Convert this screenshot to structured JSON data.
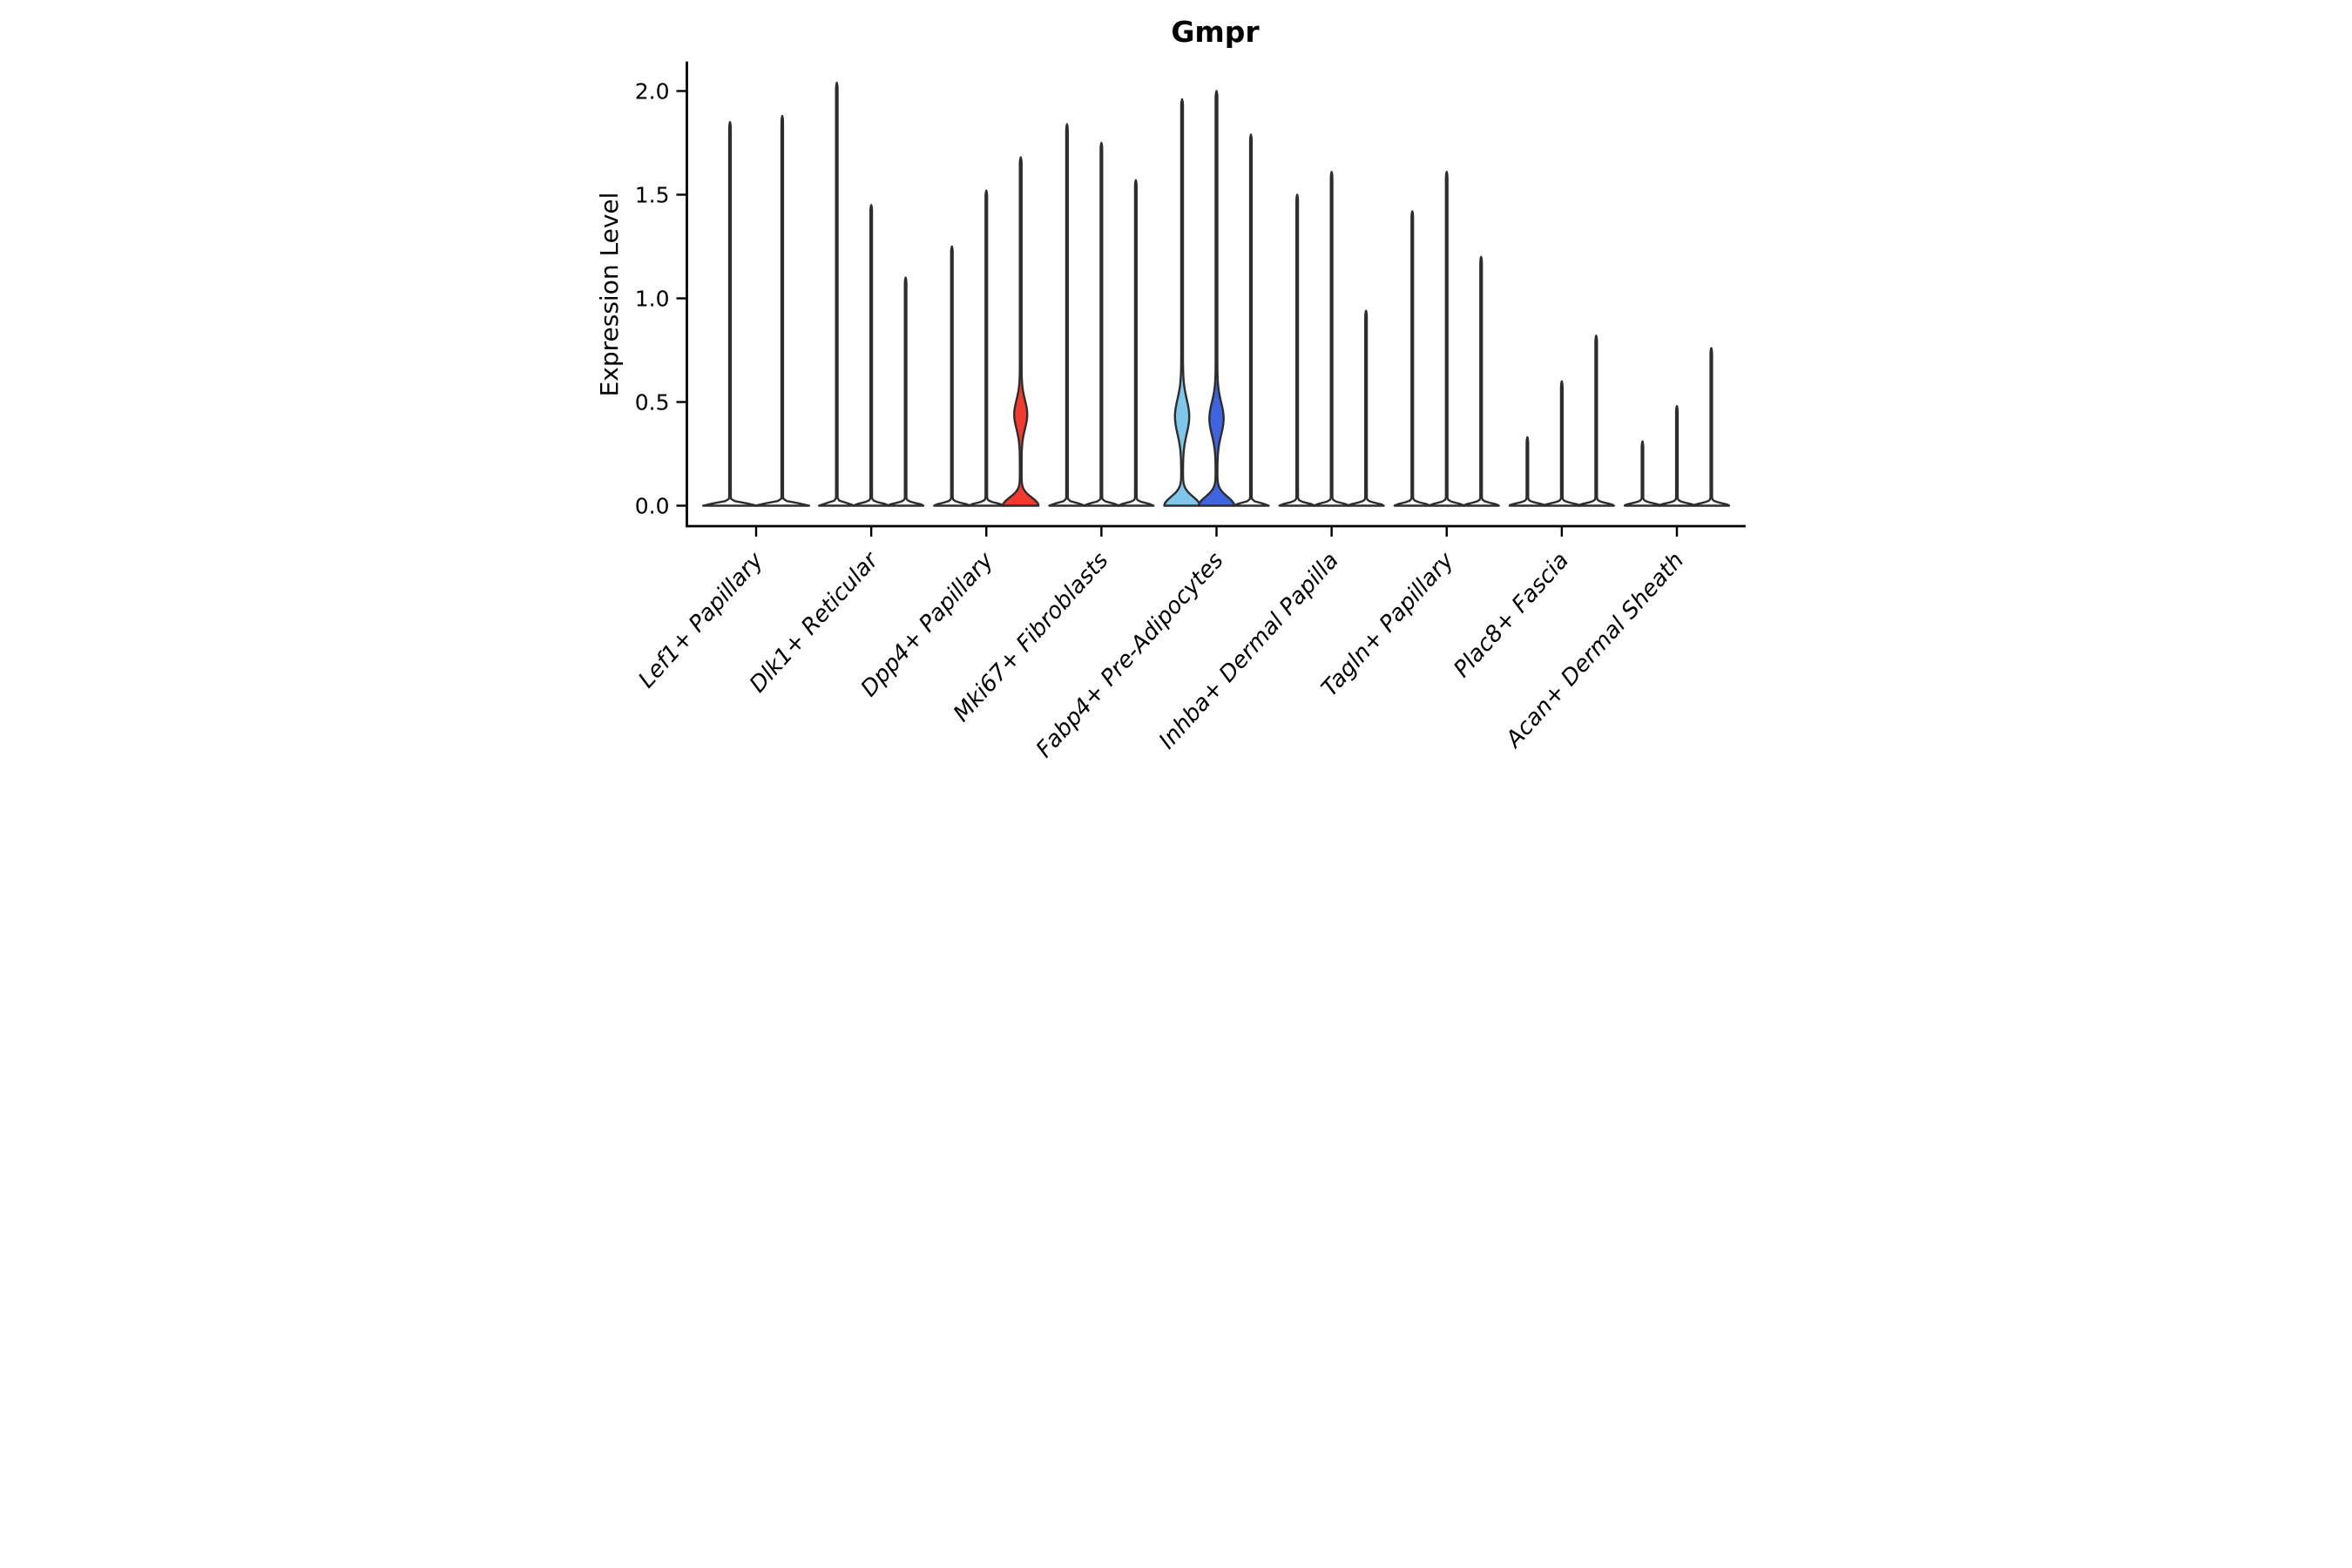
{
  "chart_data": {
    "type": "violin",
    "title": "Gmpr",
    "ylabel": "Expression Level",
    "xlabel": "",
    "grid": false,
    "legend": "none",
    "ylim": [
      0,
      2.15
    ],
    "ytick_labels": [
      "0.0",
      "0.5",
      "1.0",
      "1.5",
      "2.0"
    ],
    "ytick_values": [
      0,
      0.5,
      1.0,
      1.5,
      2.0
    ],
    "categories": [
      "Lef1+ Papillary",
      "Dlk1+ Reticular",
      "Dpp4+ Papillary",
      "Mki67+ Fibroblasts",
      "Fabp4+ Pre-Adipocytes",
      "Inhba+ Dermal Papilla",
      "Tagln+ Papillary",
      "Plac8+ Fascia",
      "Acan+ Dermal Sheath"
    ],
    "groups": [
      {
        "label": "Lef1+ Papillary",
        "violins": [
          {
            "max": 1.85
          },
          {
            "max": 1.88
          }
        ]
      },
      {
        "label": "Dlk1+ Reticular",
        "violins": [
          {
            "max": 2.04
          },
          {
            "max": 1.45
          },
          {
            "max": 1.1
          }
        ]
      },
      {
        "label": "Dpp4+ Papillary",
        "violins": [
          {
            "max": 1.25
          },
          {
            "max": 1.52
          },
          {
            "max": 1.68,
            "color": "red",
            "body": {
              "base_top": 0.12,
              "bulge_center": 0.44,
              "bulge_low": 0.28,
              "bulge_high": 0.57
            }
          }
        ]
      },
      {
        "label": "Mki67+ Fibroblasts",
        "violins": [
          {
            "max": 1.84
          },
          {
            "max": 1.75
          },
          {
            "max": 1.57
          }
        ]
      },
      {
        "label": "Fabp4+ Pre-Adipocytes",
        "violins": [
          {
            "max": 1.96,
            "color": "light_blue",
            "body": {
              "base_top": 0.12,
              "bulge_center": 0.43,
              "bulge_low": 0.25,
              "bulge_high": 0.6
            }
          },
          {
            "max": 2.0,
            "color": "dark_blue",
            "body": {
              "base_top": 0.12,
              "bulge_center": 0.42,
              "bulge_low": 0.25,
              "bulge_high": 0.58
            }
          },
          {
            "max": 1.79
          }
        ]
      },
      {
        "label": "Inhba+ Dermal Papilla",
        "violins": [
          {
            "max": 1.5
          },
          {
            "max": 1.61
          },
          {
            "max": 0.94
          }
        ]
      },
      {
        "label": "Tagln+ Papillary",
        "violins": [
          {
            "max": 1.42
          },
          {
            "max": 1.61
          },
          {
            "max": 1.2
          }
        ]
      },
      {
        "label": "Plac8+ Fascia",
        "violins": [
          {
            "max": 0.33
          },
          {
            "max": 0.6
          },
          {
            "max": 0.82
          }
        ]
      },
      {
        "label": "Acan+ Dermal Sheath",
        "violins": [
          {
            "max": 0.31
          },
          {
            "max": 0.48
          },
          {
            "max": 0.76
          }
        ]
      }
    ],
    "colors": {
      "red": "#f23b2e",
      "light_blue": "#7ec6ea",
      "dark_blue": "#3e64df",
      "violin_fill_default": "#ffffff",
      "violin_stroke": "#2d2d2d",
      "axis": "#000000",
      "background": "#ffffff"
    }
  }
}
